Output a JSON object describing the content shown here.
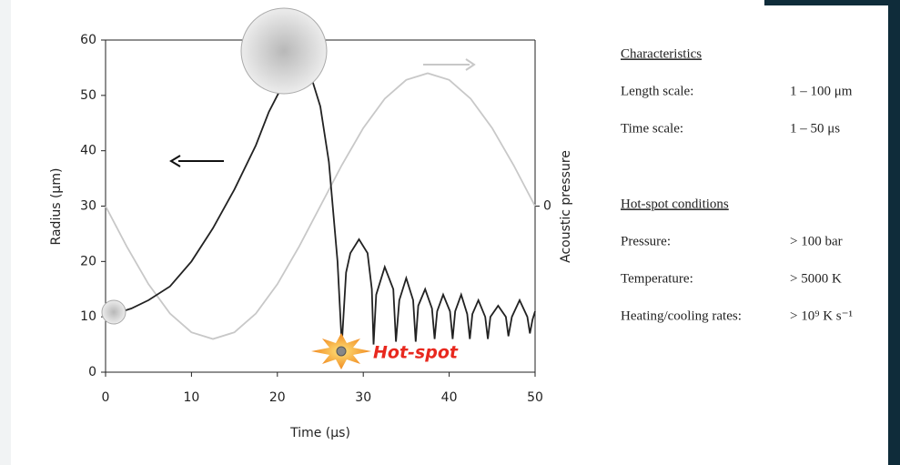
{
  "chart_data": {
    "type": "line",
    "xlabel": "Time (μs)",
    "ylabel": "Radius (μm)",
    "y2label": "Acoustic pressure",
    "xlim": [
      0,
      50
    ],
    "xticks": [
      0,
      10,
      20,
      30,
      40,
      50
    ],
    "ylim": [
      0,
      60
    ],
    "yticks": [
      0,
      10,
      20,
      30,
      40,
      50,
      60
    ],
    "y2lim": [
      -30,
      30
    ],
    "y2ticks": [
      0
    ],
    "annotation": "Hot-spot",
    "series": [
      {
        "color": "#c8c8c8",
        "axis": "y2",
        "x": [
          0,
          2.5,
          5,
          7.5,
          10,
          12.5,
          15,
          17.5,
          20,
          22.5,
          25,
          27.5,
          30,
          32.5,
          35,
          37.5,
          40,
          42.5,
          45,
          47.5,
          50
        ],
        "values": [
          0,
          -7.4,
          -14.1,
          -19.4,
          -22.8,
          -24,
          -22.8,
          -19.4,
          -14.1,
          -7.4,
          0,
          7.4,
          14.1,
          19.4,
          22.8,
          24,
          22.8,
          19.4,
          14.1,
          7.4,
          0
        ]
      },
      {
        "color": "#222222",
        "x": [
          1,
          3,
          5,
          7.5,
          10,
          12.5,
          15,
          17.5,
          19,
          20,
          21,
          22.5,
          24,
          25,
          26,
          27,
          27.5,
          28,
          28.5,
          29.5,
          30.5,
          31,
          31.2,
          31.5,
          32.5,
          33.5,
          33.8,
          34.2,
          35,
          35.8,
          36.1,
          36.4,
          37.2,
          38,
          38.3,
          38.6,
          39.3,
          40.1,
          40.4,
          40.7,
          41.4,
          42.1,
          42.4,
          42.7,
          43.4,
          44.2,
          44.5,
          44.8,
          45.7,
          46.6,
          46.9,
          47.3,
          48.2,
          49.1,
          49.4,
          49.7,
          50
        ],
        "values": [
          10.5,
          11.5,
          13,
          15.5,
          20,
          26,
          33,
          41,
          47,
          50,
          53,
          55,
          53,
          48,
          38,
          20,
          5,
          18,
          21.5,
          24,
          21.5,
          15,
          5,
          14,
          19,
          15,
          5.5,
          13,
          17,
          13,
          5.5,
          12,
          15,
          11.5,
          6,
          11,
          14,
          11,
          6,
          11,
          14,
          10.5,
          6,
          10.5,
          13,
          10,
          6,
          10,
          12,
          10,
          6.5,
          10,
          13,
          10,
          7,
          9.5,
          11
        ]
      }
    ]
  },
  "panel": {
    "sections": [
      {
        "title": "Characteristics",
        "rows": [
          [
            "Length scale:",
            "1 – 100 μm"
          ],
          [
            "Time scale:",
            "1 – 50 μs"
          ]
        ]
      },
      {
        "title": "Hot-spot conditions",
        "rows": [
          [
            "Pressure:",
            "> 100 bar"
          ],
          [
            "Temperature:",
            "> 5000 K"
          ],
          [
            "Heating/cooling rates:",
            "> 10⁹ K s⁻¹"
          ]
        ]
      }
    ]
  }
}
